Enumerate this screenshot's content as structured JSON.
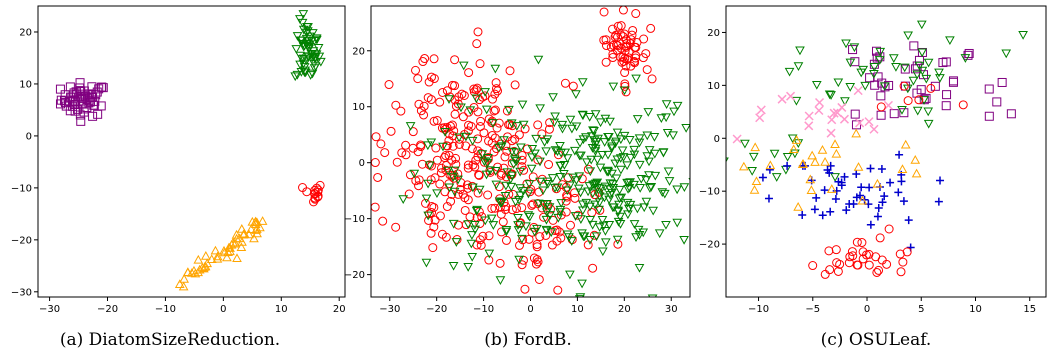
{
  "chart_data": [
    {
      "type": "scatter",
      "caption": "(a) DiatomSizeReduction.",
      "xlim": [
        -32,
        21
      ],
      "ylim": [
        -31,
        25
      ],
      "xticks": [
        -30,
        -20,
        -10,
        0,
        10,
        20
      ],
      "yticks": [
        -30,
        -20,
        -10,
        0,
        10,
        20
      ],
      "grid": false,
      "clusters": [
        {
          "marker": "square",
          "color": "#800080",
          "cx": -24,
          "cy": 7,
          "sx": 2.0,
          "sy": 1.6,
          "n": 60
        },
        {
          "marker": "triangle-down",
          "color": "#008000",
          "cx": 14.5,
          "cy": 16,
          "sx": 1.1,
          "sy": 3.0,
          "n": 60
        },
        {
          "marker": "circle",
          "color": "#ff0000",
          "cx": 15.5,
          "cy": -11,
          "sx": 0.8,
          "sy": 1.0,
          "n": 14
        },
        {
          "marker": "triangle-up",
          "color": "#ffa500",
          "line": [
            [
              -6.5,
              -27.5
            ],
            [
              7,
              -17
            ]
          ],
          "spread": 0.8,
          "n": 55
        }
      ]
    },
    {
      "type": "scatter",
      "caption": "(b) FordB.",
      "xlim": [
        -34,
        34
      ],
      "ylim": [
        -24,
        28
      ],
      "xticks": [
        -30,
        -20,
        -10,
        0,
        10,
        20,
        30
      ],
      "yticks": [
        -20,
        -10,
        0,
        10,
        20
      ],
      "grid": false,
      "clusters": [
        {
          "marker": "circle",
          "color": "#ff0000",
          "cx": -15,
          "cy": 2,
          "sx": 7.5,
          "sy": 8,
          "n": 230
        },
        {
          "marker": "circle",
          "color": "#ff0000",
          "cx": 2,
          "cy": -10,
          "sx": 7,
          "sy": 6,
          "n": 90
        },
        {
          "marker": "circle",
          "color": "#ff0000",
          "cx": 20,
          "cy": 20,
          "sx": 2.2,
          "sy": 3.5,
          "n": 60
        },
        {
          "marker": "triangle-down",
          "color": "#008000",
          "cx": 14,
          "cy": -2,
          "sx": 9,
          "sy": 8,
          "n": 260
        },
        {
          "marker": "triangle-down",
          "color": "#008000",
          "cx": -10,
          "cy": -3,
          "sx": 9,
          "sy": 9,
          "n": 90
        }
      ]
    },
    {
      "type": "scatter",
      "caption": "(c) OSULeaf.",
      "xlim": [
        -13,
        16.5
      ],
      "ylim": [
        -30,
        25
      ],
      "xticks": [
        -10,
        -5,
        0,
        5,
        10,
        15
      ],
      "yticks": [
        -20,
        -10,
        0,
        10,
        20
      ],
      "grid": false,
      "clusters": [
        {
          "marker": "square",
          "color": "#800080",
          "cx": 4,
          "cy": 11,
          "sx": 4.5,
          "sy": 4,
          "n": 45
        },
        {
          "marker": "triangle-down",
          "color": "#008000",
          "cx": 2,
          "cy": 12,
          "sx": 5,
          "sy": 4,
          "n": 45
        },
        {
          "marker": "triangle-down",
          "color": "#008000",
          "cx": -7,
          "cy": -6,
          "sx": 3,
          "sy": 3,
          "n": 12
        },
        {
          "marker": "x",
          "color": "#ff99cc",
          "cx": -5,
          "cy": 3,
          "sx": 3.5,
          "sy": 4,
          "n": 20
        },
        {
          "marker": "plus",
          "color": "#0000cc",
          "cx": -2,
          "cy": -9,
          "sx": 3.5,
          "sy": 3.5,
          "n": 50
        },
        {
          "marker": "triangle-up",
          "color": "#ffa500",
          "cx": -4,
          "cy": -5,
          "sx": 5,
          "sy": 4,
          "n": 28
        },
        {
          "marker": "circle",
          "color": "#ff0000",
          "cx": -1,
          "cy": -23,
          "sx": 2.5,
          "sy": 1.8,
          "n": 32
        },
        {
          "marker": "circle",
          "color": "#ff0000",
          "cx": 5,
          "cy": 5,
          "sx": 3,
          "sy": 3,
          "n": 6
        }
      ]
    }
  ]
}
